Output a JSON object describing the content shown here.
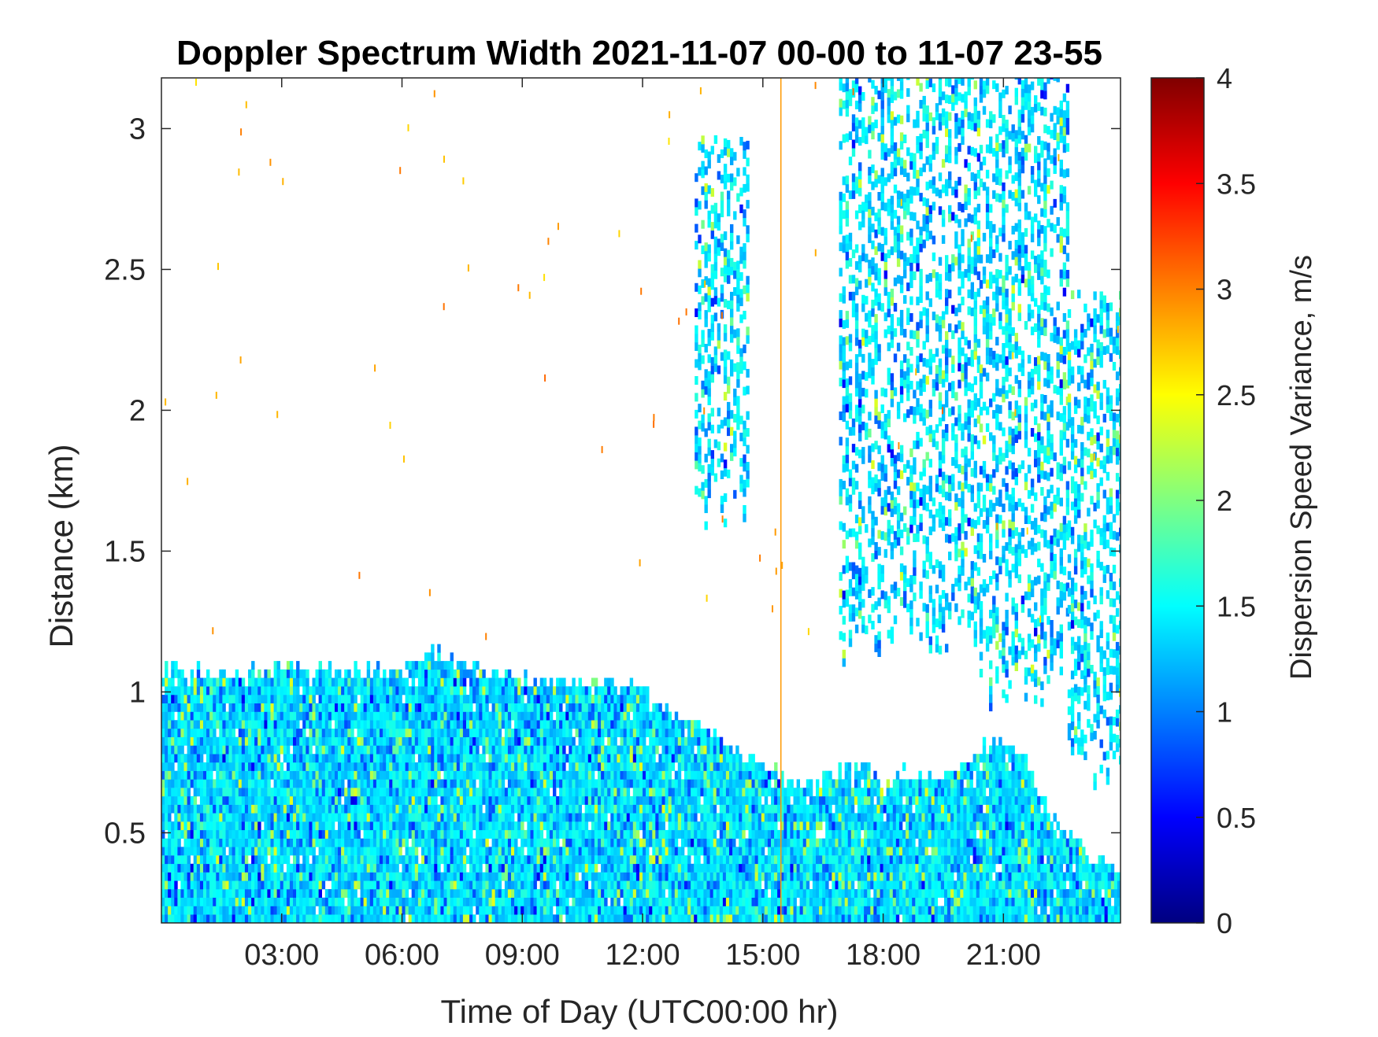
{
  "chart_data": {
    "type": "heatmap",
    "title": "Doppler Spectrum Width 2021-11-07 00-00 to 11-07 23-55",
    "xlabel": "Time of Day (UTC00:00 hr)",
    "ylabel": "Distance (km)",
    "xlim": [
      0.0,
      23.92
    ],
    "ylim": [
      0.18,
      3.18
    ],
    "x_ticks": [
      3,
      6,
      9,
      12,
      15,
      18,
      21
    ],
    "x_tick_labels": [
      "03:00",
      "06:00",
      "09:00",
      "12:00",
      "15:00",
      "18:00",
      "21:00"
    ],
    "y_ticks": [
      0.5,
      1,
      1.5,
      2,
      2.5,
      3
    ],
    "y_tick_labels": [
      "0.5",
      "1",
      "1.5",
      "2",
      "2.5",
      "3"
    ],
    "colorbar": {
      "label": "Dispersion Speed Variance, m/s",
      "range": [
        0,
        4
      ],
      "colormap": "jet",
      "ticks": [
        0,
        0.5,
        1,
        1.5,
        2,
        2.5,
        3,
        3.5,
        4
      ],
      "tick_labels": [
        "0",
        "0.5",
        "1",
        "1.5",
        "2",
        "2.5",
        "3",
        "3.5",
        "4"
      ],
      "colors": [
        "#00008f",
        "#0000ff",
        "#0080ff",
        "#00ffff",
        "#80ff80",
        "#ffff00",
        "#ff8000",
        "#ff0000",
        "#800000"
      ]
    },
    "dominant_value": 1.4,
    "boundary_layer_top_km": {
      "time_hr": [
        0.0,
        1.0,
        2.0,
        3.0,
        4.0,
        5.0,
        6.0,
        6.7,
        7.5,
        8.5,
        9.5,
        10.5,
        11.0,
        12.0,
        12.5,
        13.5,
        14.0,
        14.5,
        15.0,
        15.5,
        16.0,
        16.5,
        17.0,
        17.5,
        18.0,
        18.5,
        19.0,
        19.5,
        20.0,
        20.5,
        21.0,
        21.5,
        22.0,
        22.5,
        23.0,
        23.5,
        23.92
      ],
      "top_km": [
        1.07,
        1.05,
        1.05,
        1.07,
        1.06,
        1.07,
        1.06,
        1.15,
        1.08,
        1.05,
        1.02,
        1.0,
        1.02,
        0.99,
        0.92,
        0.88,
        0.82,
        0.75,
        0.75,
        0.68,
        0.63,
        0.67,
        0.7,
        0.72,
        0.64,
        0.7,
        0.67,
        0.7,
        0.73,
        0.81,
        0.79,
        0.77,
        0.6,
        0.5,
        0.42,
        0.38,
        0.36
      ]
    },
    "elevated_layers": [
      {
        "time_start_hr": 13.3,
        "time_end_hr": 14.6,
        "base_km": 1.7,
        "top_km": 2.95
      },
      {
        "time_start_hr": 16.9,
        "time_end_hr": 20.4,
        "base_km": 1.2,
        "top_km": 3.18
      },
      {
        "time_start_hr": 20.4,
        "time_end_hr": 22.6,
        "base_km": 1.05,
        "top_km": 3.18
      },
      {
        "time_start_hr": 22.6,
        "time_end_hr": 23.92,
        "base_km": 0.75,
        "top_km": 2.4
      }
    ],
    "vertical_line_hr": 15.45
  }
}
